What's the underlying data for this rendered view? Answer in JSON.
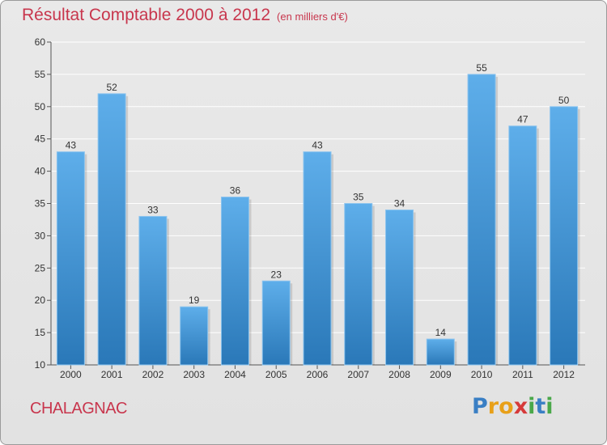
{
  "header": {
    "title": "Résultat Comptable 2000 à 2012",
    "subtitle": "(en milliers d'€)"
  },
  "commune": "CHALAGNAC",
  "logo": {
    "letters": [
      "P",
      "r",
      "o",
      "x",
      "i",
      "t",
      "i"
    ],
    "colors": [
      "#3a7fc4",
      "#e8a019",
      "#e8a019",
      "#d63a3a",
      "#4aa84a",
      "#3a7fc4",
      "#4aa84a"
    ]
  },
  "colors": {
    "bar_light": "#5eaeea",
    "bar_dark": "#2a78b8",
    "title": "#c8364d",
    "grid": "#ffffff"
  },
  "chart_data": {
    "type": "bar",
    "title": "Résultat Comptable 2000 à 2012",
    "xlabel": "",
    "ylabel": "",
    "categories": [
      "2000",
      "2001",
      "2002",
      "2003",
      "2004",
      "2005",
      "2006",
      "2007",
      "2008",
      "2009",
      "2010",
      "2011",
      "2012"
    ],
    "values": [
      43,
      52,
      33,
      19,
      36,
      23,
      43,
      35,
      34,
      14,
      55,
      47,
      50
    ],
    "ylim": [
      10,
      60
    ],
    "yticks": [
      10,
      15,
      20,
      25,
      30,
      35,
      40,
      45,
      50,
      55,
      60
    ],
    "grid": true
  }
}
